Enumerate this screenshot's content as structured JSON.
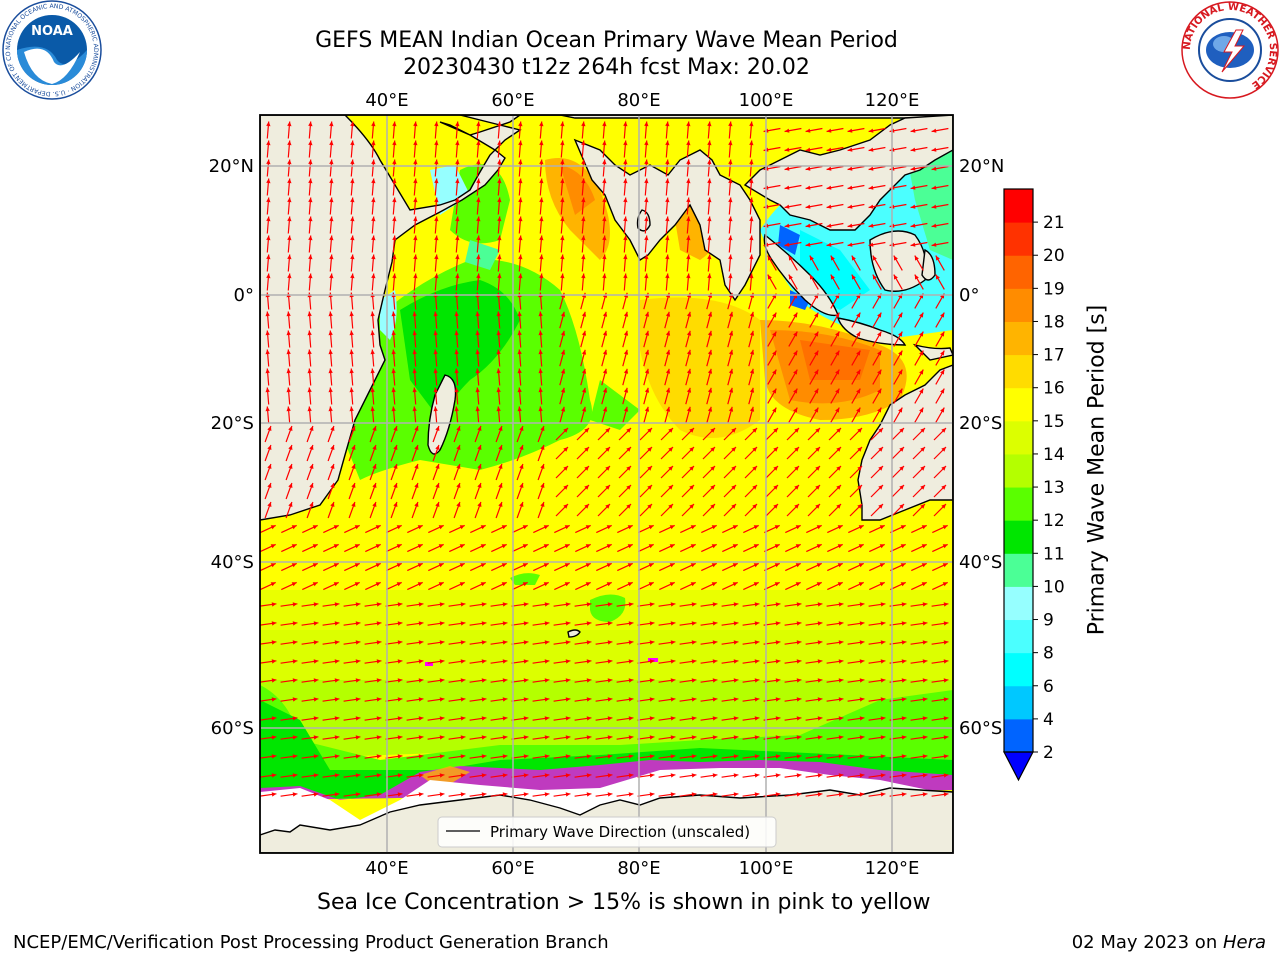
{
  "header": {
    "title_line1": "GEFS MEAN Indian Ocean Primary Wave Mean Period",
    "title_line2": "20230430 t12z 264h fcst   Max: 20.02"
  },
  "map": {
    "top_lon_labels": [
      "40°E",
      "60°E",
      "80°E",
      "100°E",
      "120°E"
    ],
    "bottom_lon_labels": [
      "40°E",
      "60°E",
      "80°E",
      "100°E",
      "120°E"
    ],
    "left_lat_labels": [
      "20°N",
      "0°",
      "20°S",
      "40°S",
      "60°S"
    ],
    "right_lat_labels": [
      "20°N",
      "0°",
      "20°S",
      "40°S",
      "60°S"
    ],
    "legend_label": "Primary Wave Direction (unscaled)",
    "land_color": "#efedde",
    "arrow_color": "#ff0000"
  },
  "colorbar": {
    "label": "Primary Wave Mean Period [s]",
    "ticks": [
      "2",
      "4",
      "6",
      "8",
      "9",
      "10",
      "11",
      "12",
      "13",
      "14",
      "15",
      "16",
      "17",
      "18",
      "19",
      "20",
      "21"
    ],
    "colors": [
      "#0064ff",
      "#00c8ff",
      "#00ffff",
      "#4bffff",
      "#96ffff",
      "#4bff96",
      "#00e600",
      "#5aff00",
      "#b4ff00",
      "#dcff00",
      "#ffff00",
      "#ffdc00",
      "#ffb400",
      "#ff8c00",
      "#ff6400",
      "#ff3200",
      "#ff0000"
    ],
    "under_color": "#0000ff"
  },
  "captions": {
    "sea_ice": "Sea Ice Concentration > 15% is shown in pink to yellow",
    "footer_left": "NCEP/EMC/Verification Post Processing Product Generation Branch",
    "footer_date": "02 May 2023 on ",
    "footer_machine": "Hera"
  },
  "logos": {
    "noaa_text": "NOAA",
    "noaa_ring_text": "NATIONAL OCEANIC AND ATMOSPHERIC ADMINISTRATION · U.S. DEPARTMENT OF COMMERCE",
    "nws_ring_text": "NATIONAL WEATHER SERVICE"
  }
}
